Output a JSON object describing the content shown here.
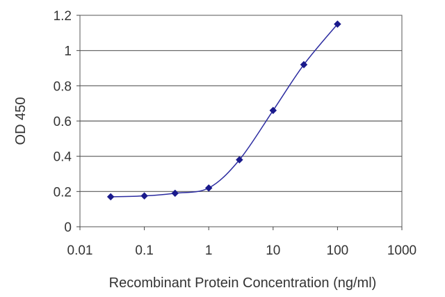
{
  "chart_data": {
    "type": "line",
    "title": "",
    "xlabel": "Recombinant Protein Concentration (ng/ml)",
    "ylabel": "OD 450",
    "xscale": "log",
    "xlim": [
      0.01,
      1000
    ],
    "ylim": [
      0,
      1.2
    ],
    "grid": "horizontal",
    "legend": "none",
    "x_ticks": [
      "0.01",
      "0.1",
      "1",
      "10",
      "100",
      "1000"
    ],
    "y_ticks": [
      "0",
      "0.2",
      "0.4",
      "0.6",
      "0.8",
      "1",
      "1.2"
    ],
    "series": [
      {
        "x": [
          0.03,
          0.1,
          0.3,
          1,
          3,
          10,
          30,
          100
        ],
        "y": [
          0.17,
          0.175,
          0.19,
          0.22,
          0.38,
          0.66,
          0.92,
          1.15
        ]
      }
    ],
    "colors": {
      "series": "#2b2ba0",
      "marker": "#1a1a8c",
      "grid": "#5a5a5a",
      "axis": "#444444"
    }
  }
}
